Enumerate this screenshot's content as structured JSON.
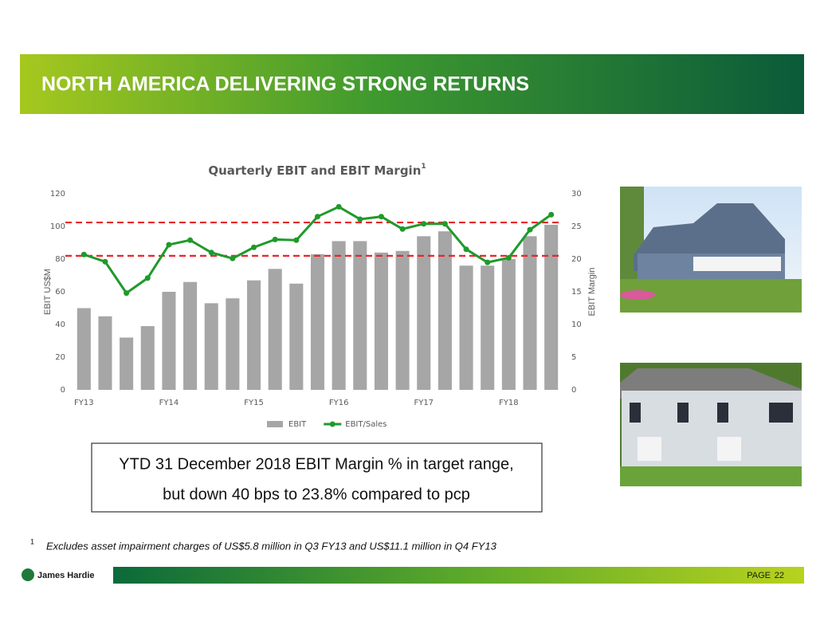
{
  "header": {
    "title": "NORTH AMERICA DELIVERING STRONG RETURNS"
  },
  "chart_data": {
    "type": "bar_line",
    "title": "Quarterly  EBIT and  EBIT Margin",
    "title_superscript": "1",
    "y_label": "EBIT US$M",
    "y2_label": "EBIT Margin",
    "categories": [
      "FY13",
      null,
      null,
      null,
      "FY14",
      null,
      null,
      null,
      "FY15",
      null,
      null,
      null,
      "FY16",
      null,
      null,
      null,
      "FY17",
      null,
      null,
      null,
      "FY18",
      null,
      null
    ],
    "series": [
      {
        "name": "EBIT",
        "type": "bar",
        "color": "#a6a6a6",
        "values": [
          50,
          45,
          32,
          39,
          60,
          66,
          53,
          56,
          67,
          74,
          65,
          83,
          91,
          91,
          84,
          85,
          94,
          97,
          76,
          76,
          80,
          94,
          101
        ]
      },
      {
        "name": "EBIT/Sales",
        "type": "line",
        "axis": "y2",
        "color": "#1f9a2a",
        "values": [
          20.7,
          19.6,
          14.8,
          17.1,
          22.2,
          22.9,
          21.0,
          20.1,
          21.8,
          23.0,
          22.9,
          26.5,
          28.0,
          26.1,
          26.5,
          24.6,
          25.4,
          25.4,
          21.5,
          19.5,
          20.2,
          24.5,
          26.8
        ]
      }
    ],
    "ylim": [
      0,
      120
    ],
    "yticks": [
      0,
      20,
      40,
      60,
      80,
      100,
      120
    ],
    "y2lim": [
      0,
      30
    ],
    "y2ticks": [
      0,
      5,
      10,
      15,
      20,
      25,
      30
    ],
    "reference_lines": [
      20.5,
      25.6
    ],
    "reference_color": "#e8262a",
    "grid": false,
    "legend": "bottom"
  },
  "callout": {
    "lines": [
      "YTD 31 December 2018 EBIT Margin % in target range,",
      "but down 40 bps to 23.8% compared to pcp"
    ]
  },
  "footnote": {
    "marker": "1",
    "text": "Excludes asset impairment charges of US$5.8 million in Q3 FY13 and US$11.1 million in Q4 FY13"
  },
  "footer": {
    "brand": "James Hardie",
    "page_label": "PAGE",
    "page_number": "22"
  }
}
